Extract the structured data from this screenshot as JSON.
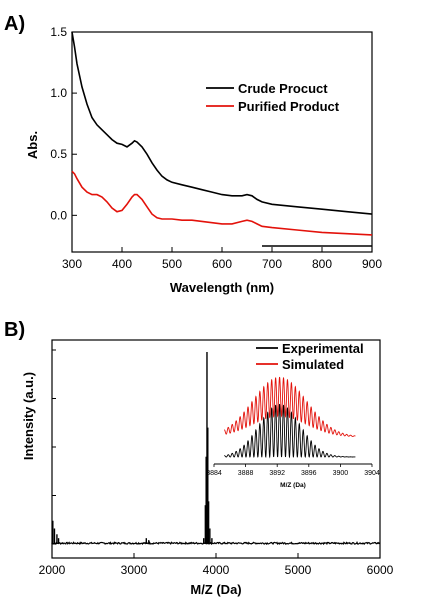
{
  "chart_data": [
    {
      "type": "line",
      "panel_label": "A)",
      "xlabel": "Wavelength (nm)",
      "ylabel": "Abs.",
      "xlim": [
        300,
        900
      ],
      "ylim": [
        -0.3,
        1.5
      ],
      "xticks": [
        "300",
        "400",
        "500",
        "600",
        "700",
        "800",
        "900"
      ],
      "yticks": [
        "0.0",
        "0.5",
        "1.0",
        "1.5"
      ],
      "legend_position": "top-right",
      "series": [
        {
          "name": "Crude Procuct",
          "color": "#000000",
          "x": [
            300,
            305,
            310,
            320,
            330,
            340,
            350,
            360,
            370,
            380,
            390,
            400,
            410,
            420,
            425,
            430,
            440,
            450,
            460,
            470,
            480,
            490,
            500,
            520,
            540,
            560,
            580,
            600,
            620,
            640,
            650,
            660,
            670,
            680,
            700,
            750,
            800,
            850,
            900
          ],
          "y": [
            1.5,
            1.38,
            1.24,
            1.05,
            0.91,
            0.8,
            0.74,
            0.7,
            0.66,
            0.62,
            0.59,
            0.58,
            0.56,
            0.59,
            0.61,
            0.6,
            0.56,
            0.5,
            0.43,
            0.37,
            0.32,
            0.29,
            0.27,
            0.25,
            0.23,
            0.21,
            0.19,
            0.17,
            0.16,
            0.16,
            0.17,
            0.16,
            0.13,
            0.11,
            0.09,
            0.07,
            0.05,
            0.03,
            0.01
          ]
        },
        {
          "name": "Purified Product",
          "color": "#e3120b",
          "x": [
            300,
            305,
            310,
            320,
            330,
            340,
            350,
            360,
            370,
            380,
            390,
            400,
            410,
            420,
            425,
            430,
            440,
            450,
            460,
            470,
            480,
            500,
            520,
            540,
            560,
            580,
            600,
            620,
            640,
            650,
            660,
            670,
            680,
            700,
            750,
            800,
            850,
            900
          ],
          "y": [
            0.36,
            0.34,
            0.3,
            0.23,
            0.19,
            0.17,
            0.17,
            0.15,
            0.11,
            0.06,
            0.03,
            0.04,
            0.09,
            0.15,
            0.17,
            0.17,
            0.13,
            0.07,
            0.01,
            -0.02,
            -0.03,
            -0.03,
            -0.04,
            -0.04,
            -0.05,
            -0.06,
            -0.07,
            -0.07,
            -0.05,
            -0.04,
            -0.05,
            -0.07,
            -0.09,
            -0.1,
            -0.12,
            -0.14,
            -0.15,
            -0.16
          ]
        }
      ]
    },
    {
      "type": "line",
      "panel_label": "B)",
      "xlabel": "M/Z (Da)",
      "ylabel": "Intensity (a.u.)",
      "xlim": [
        2000,
        6000
      ],
      "ylim": [
        0,
        1
      ],
      "xticks": [
        "2000",
        "3000",
        "4000",
        "5000",
        "6000"
      ],
      "legend_position": "top-right",
      "series": [
        {
          "name": "Experimental",
          "color": "#000000",
          "peaks": [
            {
              "x": 2010,
              "y": 0.12
            },
            {
              "x": 2030,
              "y": 0.08
            },
            {
              "x": 2060,
              "y": 0.05
            },
            {
              "x": 2080,
              "y": 0.03
            },
            {
              "x": 3150,
              "y": 0.03
            },
            {
              "x": 3180,
              "y": 0.02
            },
            {
              "x": 3850,
              "y": 0.03
            },
            {
              "x": 3870,
              "y": 0.2
            },
            {
              "x": 3880,
              "y": 0.45
            },
            {
              "x": 3890,
              "y": 0.99
            },
            {
              "x": 3900,
              "y": 0.6
            },
            {
              "x": 3910,
              "y": 0.22
            },
            {
              "x": 3925,
              "y": 0.08
            },
            {
              "x": 3950,
              "y": 0.03
            }
          ]
        }
      ],
      "inset": {
        "xlabel": "M/Z (Da)",
        "xlim": [
          3884,
          3904
        ],
        "xticks": [
          "3884",
          "3888",
          "3892",
          "3896",
          "3900",
          "3904"
        ],
        "series": [
          {
            "name": "Experimental",
            "color": "#000000",
            "center": 3892.3,
            "width": 2.6,
            "amplitude": 0.62
          },
          {
            "name": "Simulated",
            "color": "#e3120b",
            "center": 3892.3,
            "width": 3.4,
            "amplitude": 0.92
          }
        ]
      }
    }
  ]
}
